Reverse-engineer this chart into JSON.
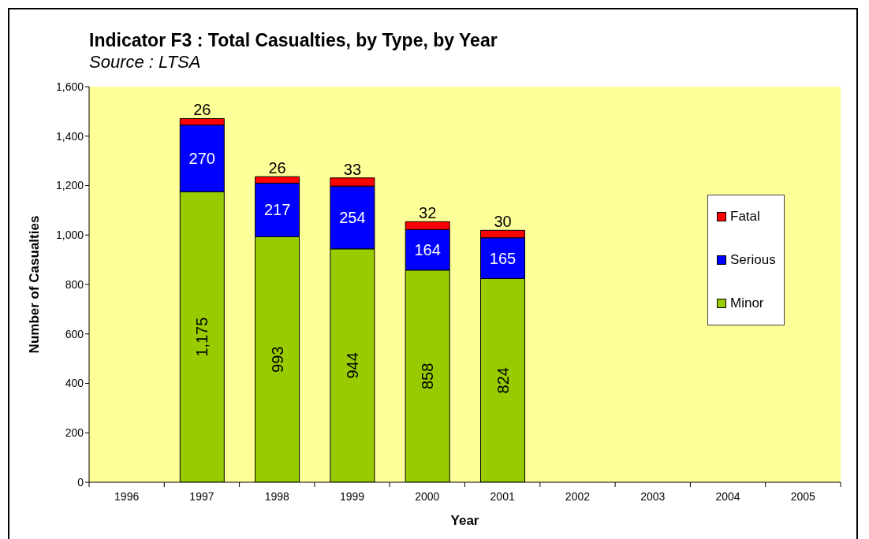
{
  "chart_data": {
    "type": "bar",
    "title": "Indicator F3 : Total Casualties, by Type, by Year",
    "subtitle": "Source : LTSA",
    "xlabel": "Year",
    "ylabel": "Number of Casualties",
    "categories": [
      "1996",
      "1997",
      "1998",
      "1999",
      "2000",
      "2001",
      "2002",
      "2003",
      "2004",
      "2005"
    ],
    "series": [
      {
        "name": "Minor",
        "color": "#99cc00",
        "values": [
          null,
          1175,
          993,
          944,
          858,
          824,
          null,
          null,
          null,
          null
        ],
        "value_labels": [
          null,
          "1,175",
          "993",
          "944",
          "858",
          "824",
          null,
          null,
          null,
          null
        ]
      },
      {
        "name": "Serious",
        "color": "#0000ff",
        "values": [
          null,
          270,
          217,
          254,
          164,
          165,
          null,
          null,
          null,
          null
        ],
        "value_labels": [
          null,
          "270",
          "217",
          "254",
          "164",
          "165",
          null,
          null,
          null,
          null
        ]
      },
      {
        "name": "Fatal",
        "color": "#ff0000",
        "values": [
          null,
          26,
          26,
          33,
          32,
          30,
          null,
          null,
          null,
          null
        ],
        "value_labels": [
          null,
          "26",
          "26",
          "33",
          "32",
          "30",
          null,
          null,
          null,
          null
        ]
      }
    ],
    "stacked": true,
    "ylim": [
      0,
      1600
    ],
    "yticks": [
      0,
      200,
      400,
      600,
      800,
      {
        "value": 1000,
        "label": "1,000"
      },
      {
        "value": 1200,
        "label": "1,200"
      },
      {
        "value": 1400,
        "label": "1,400"
      },
      {
        "value": 1600,
        "label": "1,600"
      }
    ],
    "legend": "right"
  }
}
